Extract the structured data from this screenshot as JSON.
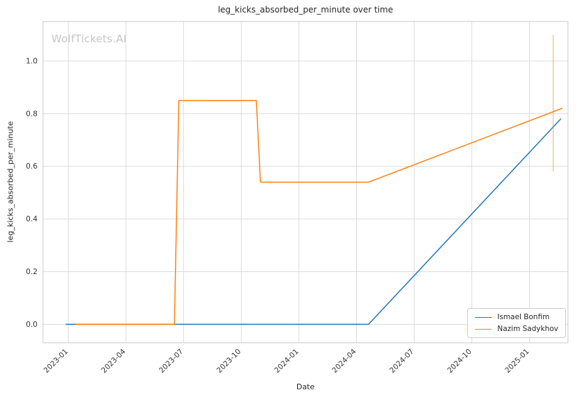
{
  "watermark": "WolfTickets.AI",
  "chart_data": {
    "type": "line",
    "title": "leg_kicks_absorbed_per_minute over time",
    "xlabel": "Date",
    "ylabel": "leg_kicks_absorbed_per_minute",
    "x_tick_labels": [
      "2023-01",
      "2023-04",
      "2023-07",
      "2023-10",
      "2024-01",
      "2024-04",
      "2024-07",
      "2024-10",
      "2025-01"
    ],
    "y_ticks": [
      0.0,
      0.2,
      0.4,
      0.6,
      0.8,
      1.0
    ],
    "y_tick_labels": [
      "0.0",
      "0.2",
      "0.4",
      "0.6",
      "0.8",
      "1.0"
    ],
    "xlim": [
      "2022-11-22",
      "2025-03-01"
    ],
    "ylim": [
      -0.07,
      1.15
    ],
    "grid": true,
    "legend_position": "lower right",
    "background": "#ffffff",
    "grid_color": "#dcdcdc",
    "spine_color": "#c9c9c9",
    "text_color": "#333333",
    "series": [
      {
        "name": "Ismael Bonfim",
        "color": "#1f77b4",
        "points": [
          [
            "2022-12-28",
            0.0
          ],
          [
            "2023-02-04",
            0.0
          ],
          [
            "2024-04-20",
            0.0
          ],
          [
            "2025-02-20",
            0.78
          ]
        ]
      },
      {
        "name": "Nazim Sadykhov",
        "color": "#ff7f0e",
        "points": [
          [
            "2023-01-14",
            0.0
          ],
          [
            "2023-06-17",
            0.0
          ],
          [
            "2023-06-24",
            0.85
          ],
          [
            "2023-10-25",
            0.85
          ],
          [
            "2023-11-01",
            0.54
          ],
          [
            "2024-04-20",
            0.54
          ],
          [
            "2025-02-22",
            0.82
          ]
        ]
      }
    ],
    "annotations": [
      {
        "type": "vline-segment",
        "x": "2025-02-08",
        "y1": 0.58,
        "y2": 1.1,
        "color": "#ff7f0e",
        "opacity": 0.5
      }
    ]
  }
}
